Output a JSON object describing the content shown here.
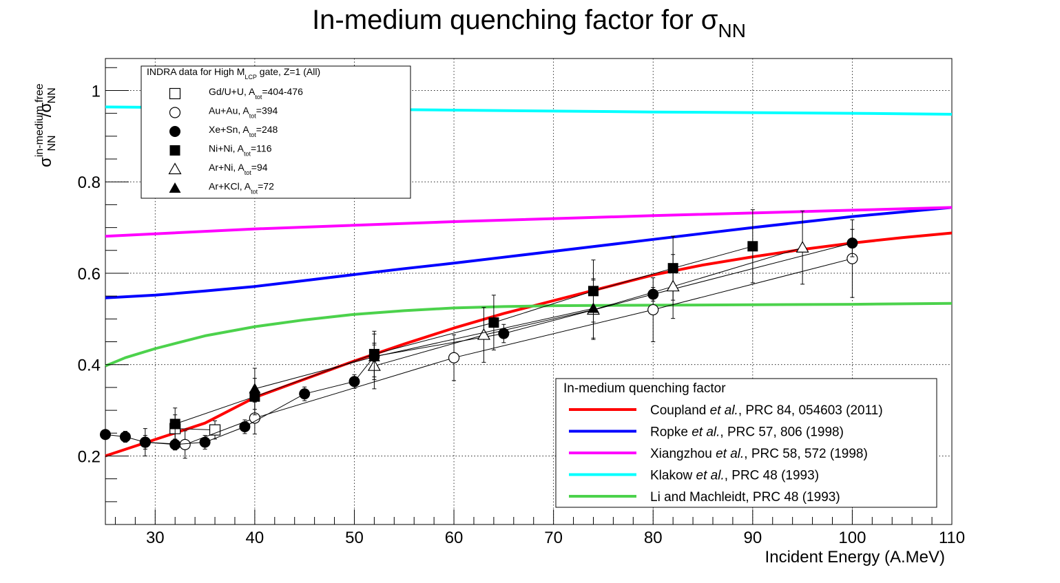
{
  "chart_data": {
    "type": "scatter",
    "title": "In-medium quenching factor for σ",
    "title_sub": "NN",
    "xlabel": "Incident Energy (A.MeV)",
    "ylabel": {
      "num_base": "σ",
      "num_sub": "NN",
      "num_sup": "in-medium",
      "slash": "/",
      "den_base": "σ",
      "den_sub": "NN",
      "den_sup": "free"
    },
    "xlim": [
      25,
      110
    ],
    "ylim": [
      0.05,
      1.07
    ],
    "x_ticks": [
      30,
      40,
      50,
      60,
      70,
      80,
      90,
      100,
      110
    ],
    "y_ticks": [
      0.2,
      0.4,
      0.6,
      0.8,
      1
    ],
    "x_tick_labels": [
      "30",
      "40",
      "50",
      "60",
      "70",
      "80",
      "90",
      "100",
      "110"
    ],
    "y_tick_labels": [
      "0.2",
      "0.4",
      "0.6",
      "0.8",
      "1"
    ],
    "grid": true,
    "legend_data": {
      "header_pre": "INDRA data for High M",
      "header_sub": "LCP",
      "header_post": " gate, Z=1 (All)",
      "placement": "top-left"
    },
    "legend_models": {
      "header": "In-medium quenching factor",
      "placement": "bottom-right"
    },
    "series": [
      {
        "name": "Gd/U+U",
        "label_pre": "Gd/U+U, A",
        "label_sub": "tot",
        "label_post": "=404-476",
        "marker": "open-square",
        "points": [
          [
            32,
            0.26,
            0.03
          ],
          [
            36,
            0.257,
            0.02
          ]
        ]
      },
      {
        "name": "Au+Au",
        "label_pre": "Au+Au, A",
        "label_sub": "tot",
        "label_post": "=394",
        "marker": "open-circle",
        "points": [
          [
            29,
            0.23,
            0.03
          ],
          [
            33,
            0.225,
            0.03
          ],
          [
            40,
            0.283,
            0.035
          ],
          [
            60,
            0.415,
            0.05
          ],
          [
            80,
            0.52,
            0.07
          ],
          [
            100,
            0.632,
            0.085
          ]
        ]
      },
      {
        "name": "Xe+Sn",
        "label_pre": "Xe+Sn, A",
        "label_sub": "tot",
        "label_post": "=248",
        "marker": "filled-circle",
        "points": [
          [
            25,
            0.247,
            0.01
          ],
          [
            27,
            0.242,
            0.012
          ],
          [
            29,
            0.23,
            0.015
          ],
          [
            32,
            0.225,
            0.012
          ],
          [
            35,
            0.23,
            0.015
          ],
          [
            39,
            0.264,
            0.015
          ],
          [
            45,
            0.336,
            0.015
          ],
          [
            50,
            0.363,
            0.015
          ],
          [
            52,
            0.418,
            0.025
          ],
          [
            65,
            0.468,
            0.02
          ],
          [
            80,
            0.554,
            0.015
          ],
          [
            100,
            0.666,
            0.03
          ]
        ]
      },
      {
        "name": "Ni+Ni",
        "label_pre": "Ni+Ni, A",
        "label_sub": "tot",
        "label_post": "=116",
        "marker": "filled-square",
        "points": [
          [
            32,
            0.27,
            0.035
          ],
          [
            40,
            0.33,
            0.04
          ],
          [
            52,
            0.423,
            0.05
          ],
          [
            64,
            0.492,
            0.06
          ],
          [
            74,
            0.561,
            0.068
          ],
          [
            82,
            0.611,
            0.07
          ],
          [
            90,
            0.659,
            0.08
          ]
        ]
      },
      {
        "name": "Ar+Ni",
        "label_pre": "Ar+Ni, A",
        "label_sub": "tot",
        "label_post": "=94",
        "marker": "open-triangle",
        "points": [
          [
            52,
            0.397,
            0.05
          ],
          [
            63,
            0.465,
            0.06
          ],
          [
            74,
            0.52,
            0.065
          ],
          [
            82,
            0.571,
            0.07
          ],
          [
            95,
            0.656,
            0.08
          ]
        ]
      },
      {
        "name": "Ar+KCl",
        "label_pre": "Ar+KCl, A",
        "label_sub": "tot",
        "label_post": "=72",
        "marker": "filled-triangle",
        "points": [
          [
            40,
            0.347,
            0.045
          ],
          [
            52,
            0.417,
            0.05
          ],
          [
            74,
            0.523,
            0.065
          ]
        ]
      }
    ],
    "curves": [
      {
        "name": "Coupland",
        "color": "#ff0000",
        "label_pre": "Coupland ",
        "label_italic": "et al.",
        "label_post": ", PRC 84, 054603 (2011)",
        "x": [
          25,
          30,
          35,
          40,
          45,
          50,
          55,
          60,
          65,
          70,
          75,
          80,
          85,
          90,
          95,
          100,
          105,
          110
        ],
        "y": [
          0.2,
          0.236,
          0.272,
          0.328,
          0.368,
          0.408,
          0.445,
          0.48,
          0.512,
          0.54,
          0.568,
          0.596,
          0.618,
          0.636,
          0.652,
          0.666,
          0.678,
          0.688
        ]
      },
      {
        "name": "Ropke",
        "color": "#0000ff",
        "label_pre": "Ropke ",
        "label_italic": "et al.",
        "label_post": ", PRC 57, 806 (1998)",
        "x": [
          25,
          30,
          35,
          40,
          45,
          50,
          55,
          60,
          65,
          70,
          75,
          80,
          85,
          90,
          95,
          100,
          105,
          110
        ],
        "y": [
          0.546,
          0.552,
          0.561,
          0.571,
          0.584,
          0.597,
          0.61,
          0.622,
          0.635,
          0.648,
          0.661,
          0.674,
          0.687,
          0.7,
          0.712,
          0.724,
          0.734,
          0.744
        ]
      },
      {
        "name": "Xiangzhou",
        "color": "#ff00ff",
        "label_pre": "Xiangzhou ",
        "label_italic": "et al.",
        "label_post": ", PRC 58, 572 (1998)",
        "x": [
          25,
          40,
          60,
          80,
          100,
          110
        ],
        "y": [
          0.681,
          0.697,
          0.713,
          0.726,
          0.738,
          0.744
        ]
      },
      {
        "name": "Klakow",
        "color": "#00ffff",
        "label_pre": "Klakow ",
        "label_italic": "et al.",
        "label_post": ", PRC 48 (1993)",
        "x": [
          25,
          40,
          60,
          80,
          100,
          110
        ],
        "y": [
          0.964,
          0.961,
          0.957,
          0.953,
          0.95,
          0.948
        ]
      },
      {
        "name": "Li and Machleidt",
        "color": "#4cd24c",
        "label_pre": "Li and Machleidt, PRC 48 (1993)",
        "label_italic": "",
        "label_post": "",
        "x": [
          25,
          27,
          30,
          35,
          40,
          45,
          50,
          55,
          60,
          65,
          70,
          80,
          90,
          100,
          110
        ],
        "y": [
          0.397,
          0.415,
          0.435,
          0.463,
          0.483,
          0.498,
          0.51,
          0.518,
          0.524,
          0.527,
          0.529,
          0.53,
          0.531,
          0.532,
          0.534
        ]
      }
    ]
  }
}
